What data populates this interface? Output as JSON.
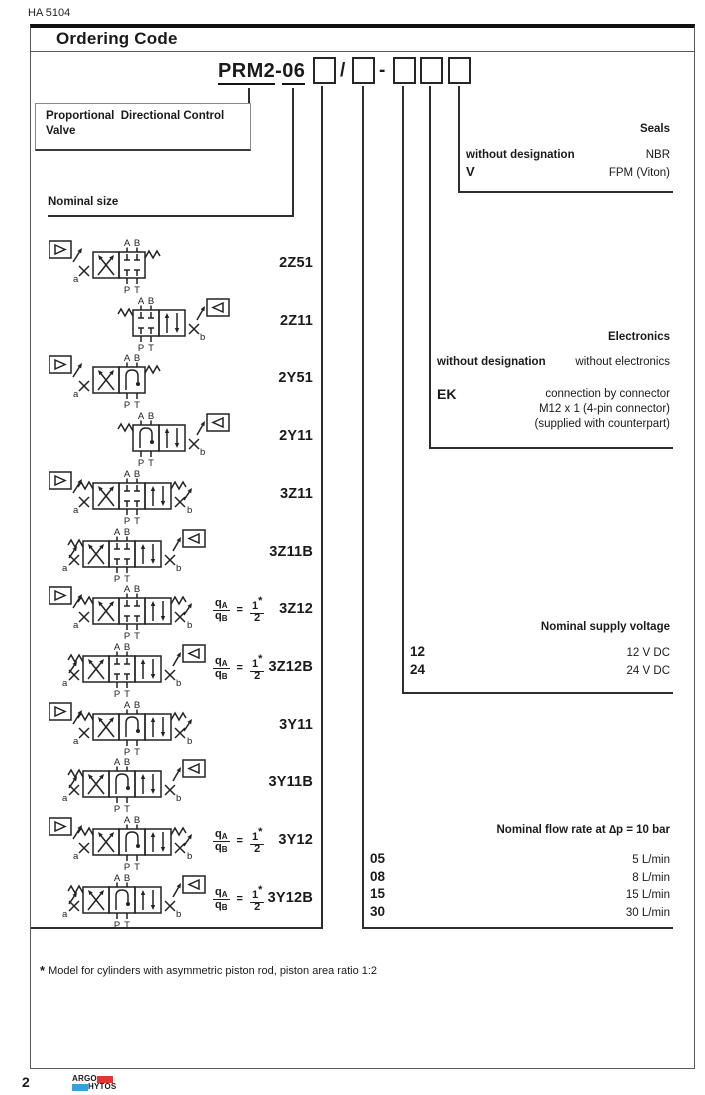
{
  "doc": {
    "number": "HA 5104",
    "title": "Ordering Code",
    "page_number": "2",
    "footnote_star": "*",
    "footnote": "Model for cylinders with asymmetric piston rod, piston area ratio 1:2",
    "brand": {
      "argo": "ARGO",
      "hytos": "HYTOS",
      "red": "#e6352b",
      "blue": "#2aa7de"
    }
  },
  "product_code": {
    "prefix": "PRM2",
    "sep": "-",
    "size": "06",
    "slash": "/",
    "dash": "-"
  },
  "labels": {
    "valve_type": "Proportional  Directional Control\nValve",
    "nominal_size": "Nominal size"
  },
  "valve_symbols": {
    "ports": {
      "a": "A",
      "b": "B",
      "p": "P",
      "t": "T",
      "side_a": "a",
      "side_b": "b"
    },
    "fraction": {
      "q": "q",
      "sub_a": "A",
      "sub_b": "B",
      "eq": "=",
      "one": "1",
      "star": "*",
      "two": "2"
    },
    "rows": [
      {
        "code": "2Z51",
        "pos": 2,
        "sol": "left",
        "spool": "Z",
        "fraction": false
      },
      {
        "code": "2Z11",
        "pos": 2,
        "sol": "right",
        "spool": "Z",
        "fraction": false
      },
      {
        "code": "2Y51",
        "pos": 2,
        "sol": "left",
        "spool": "Y",
        "fraction": false
      },
      {
        "code": "2Y11",
        "pos": 2,
        "sol": "right",
        "spool": "Y",
        "fraction": false
      },
      {
        "code": "3Z11",
        "pos": 3,
        "sol": "left",
        "spool": "Z",
        "fraction": false
      },
      {
        "code": "3Z11B",
        "pos": 3,
        "sol": "right",
        "spool": "Z",
        "fraction": false
      },
      {
        "code": "3Z12",
        "pos": 3,
        "sol": "left",
        "spool": "Z",
        "fraction": true
      },
      {
        "code": "3Z12B",
        "pos": 3,
        "sol": "right",
        "spool": "Z",
        "fraction": true
      },
      {
        "code": "3Y11",
        "pos": 3,
        "sol": "left",
        "spool": "Y",
        "fraction": false
      },
      {
        "code": "3Y11B",
        "pos": 3,
        "sol": "right",
        "spool": "Y",
        "fraction": false
      },
      {
        "code": "3Y12",
        "pos": 3,
        "sol": "left",
        "spool": "Y",
        "fraction": true
      },
      {
        "code": "3Y12B",
        "pos": 3,
        "sol": "right",
        "spool": "Y",
        "fraction": true
      }
    ]
  },
  "sections": {
    "seals": {
      "title": "Seals",
      "rows": [
        {
          "code": "without designation",
          "value": "NBR"
        },
        {
          "code": "V",
          "value": "FPM (Viton)"
        }
      ]
    },
    "electronics": {
      "title": "Electronics",
      "rows": [
        {
          "code": "without designation",
          "value": "without electronics"
        },
        {
          "code": "EK",
          "value_lines": [
            "connection by connector",
            "M12 x 1 (4-pin connector)",
            "(supplied with counterpart)"
          ]
        }
      ]
    },
    "voltage": {
      "title": "Nominal supply voltage",
      "rows": [
        {
          "code": "12",
          "value": "12 V DC"
        },
        {
          "code": "24",
          "value": "24 V DC"
        }
      ]
    },
    "flow": {
      "title": "Nominal flow rate at ∆p = 10 bar",
      "rows": [
        {
          "code": "05",
          "value": "5 L/min"
        },
        {
          "code": "08",
          "value": "8 L/min"
        },
        {
          "code": "15",
          "value": "15 L/min"
        },
        {
          "code": "30",
          "value": "30 L/min"
        }
      ]
    }
  }
}
